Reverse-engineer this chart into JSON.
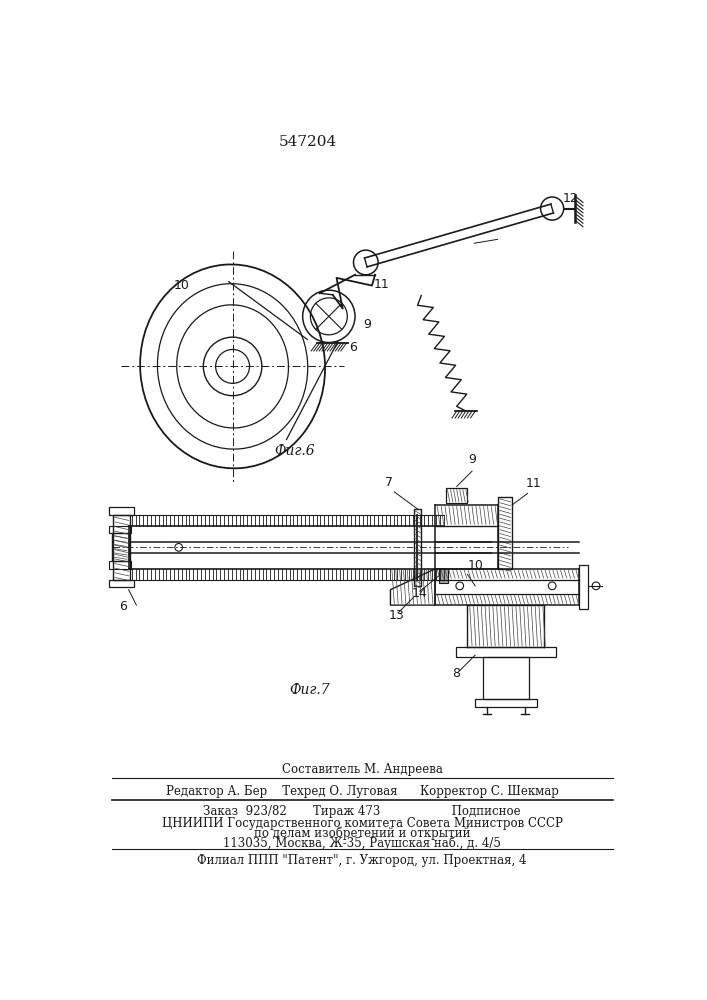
{
  "title_number": "547204",
  "fig6_label": "Фиг.6",
  "fig7_label": "Фиг.7",
  "footer_line1": "Составитель М. Андреева",
  "footer_line2": "Редактор А. Бер    Техред О. Луговая      Корректор С. Шекмар",
  "footer_line3": "Заказ  923/82       Тираж 473                   Подписное",
  "footer_line4": "ЦНИИПИ Государственного комитета Совета Министров СССР",
  "footer_line5": "по делам изобретений и открытий",
  "footer_line6": "113035, Москва, Ж-35, Раушская наб., д. 4/5",
  "footer_line7": "Филиал ППП \"Патент\", г. Ужгород, ул. Проектная, 4",
  "bg_color": "#ffffff",
  "line_color": "#1a1a1a"
}
